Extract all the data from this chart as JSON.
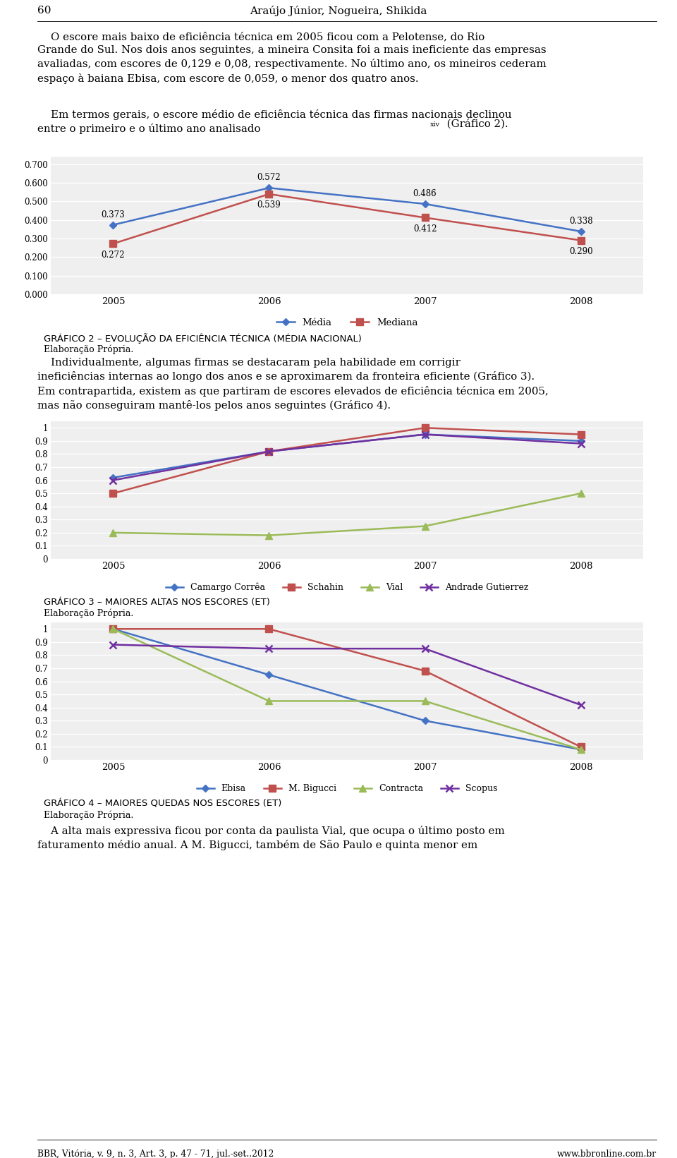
{
  "page_bg": "#ffffff",
  "chart2": {
    "title": "GRÁFICO 2 – EVOLUÇÃO DA EFICIÊNCIA TÉCNICA (MÉDIA NACIONAL)",
    "subtitle": "Elaboração Própria.",
    "years": [
      2005,
      2006,
      2007,
      2008
    ],
    "media": [
      0.373,
      0.572,
      0.486,
      0.338
    ],
    "mediana": [
      0.272,
      0.539,
      0.412,
      0.29
    ],
    "media_color": "#4472c4",
    "mediana_color": "#c0504d",
    "yticks": [
      0.0,
      0.1,
      0.2,
      0.3,
      0.4,
      0.5,
      0.6,
      0.7
    ],
    "ylim": [
      0.0,
      0.74
    ],
    "legend_labels": [
      "Média",
      "Mediana"
    ]
  },
  "chart3": {
    "title": "GRÁFICO 3 – MAIORES ALTAS NOS ESCORES (ET)",
    "subtitle": "Elaboração Própria.",
    "years": [
      2005,
      2006,
      2007,
      2008
    ],
    "camargo": [
      0.62,
      0.82,
      0.95,
      0.9
    ],
    "schahin": [
      0.5,
      0.82,
      1.0,
      0.95
    ],
    "vial": [
      0.2,
      0.18,
      0.25,
      0.5
    ],
    "andrade": [
      0.6,
      0.82,
      0.95,
      0.88
    ],
    "camargo_color": "#4472c4",
    "schahin_color": "#c0504d",
    "vial_color": "#9bbb59",
    "andrade_color": "#7030a0",
    "yticks": [
      0,
      0.1,
      0.2,
      0.3,
      0.4,
      0.5,
      0.6,
      0.7,
      0.8,
      0.9,
      1
    ],
    "ylim": [
      0,
      1.05
    ],
    "legend_labels": [
      "Camargo Corrêa",
      "Schahin",
      "Vial",
      "Andrade Gutierrez"
    ]
  },
  "chart4": {
    "title": "GRÁFICO 4 – MAIORES QUEDAS NOS ESCORES (ET)",
    "subtitle": "Elaboração Própria.",
    "years": [
      2005,
      2006,
      2007,
      2008
    ],
    "ebisa": [
      1.0,
      0.65,
      0.3,
      0.08
    ],
    "mbigucci": [
      1.0,
      1.0,
      0.68,
      0.1
    ],
    "contracta": [
      1.0,
      0.45,
      0.45,
      0.08
    ],
    "scopus": [
      0.88,
      0.85,
      0.85,
      0.42
    ],
    "ebisa_color": "#4472c4",
    "mbigucci_color": "#c0504d",
    "contracta_color": "#9bbb59",
    "scopus_color": "#7030a0",
    "yticks": [
      0,
      0.1,
      0.2,
      0.3,
      0.4,
      0.5,
      0.6,
      0.7,
      0.8,
      0.9,
      1
    ],
    "ylim": [
      0,
      1.05
    ],
    "legend_labels": [
      "Ebisa",
      "M. Bigucci",
      "Contracta",
      "Scopus"
    ]
  },
  "footer_left": "BBR, Vitória, v. 9, n. 3, Art. 3, p. 47 - 71, jul.-set..2012",
  "footer_right": "www.bbronline.com.br"
}
